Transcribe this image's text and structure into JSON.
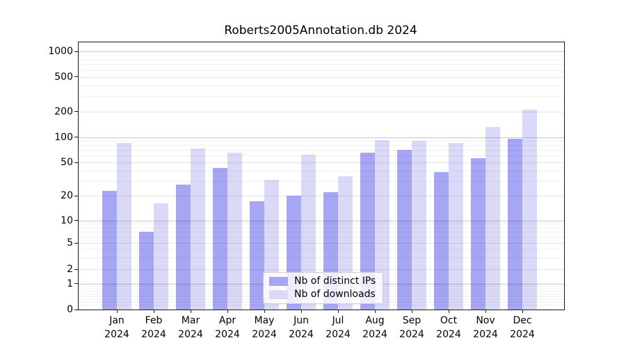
{
  "title": "Roberts2005Annotation.db 2024",
  "chart_data": {
    "type": "bar",
    "title": "Roberts2005Annotation.db 2024",
    "categories": [
      "Jan 2024",
      "Feb 2024",
      "Mar 2024",
      "Apr 2024",
      "May 2024",
      "Jun 2024",
      "Jul 2024",
      "Aug 2024",
      "Sep 2024",
      "Oct 2024",
      "Nov 2024",
      "Dec 2024"
    ],
    "series": [
      {
        "name": "Nb of distinct IPs",
        "color": "#a6a6f4",
        "values": [
          23,
          7,
          27,
          43,
          17,
          20,
          22,
          65,
          70,
          38,
          56,
          95
        ]
      },
      {
        "name": "Nb of downloads",
        "color": "#dadaf8",
        "values": [
          85,
          16,
          73,
          65,
          31,
          62,
          34,
          92,
          90,
          85,
          130,
          210
        ]
      }
    ],
    "yscale": "symlog",
    "yticks": [
      0,
      1,
      2,
      5,
      10,
      20,
      50,
      100,
      200,
      500,
      1000
    ],
    "ylim": [
      0,
      1150
    ],
    "xlabel": "",
    "ylabel": "",
    "grid": true,
    "legend_position": "lower center"
  }
}
